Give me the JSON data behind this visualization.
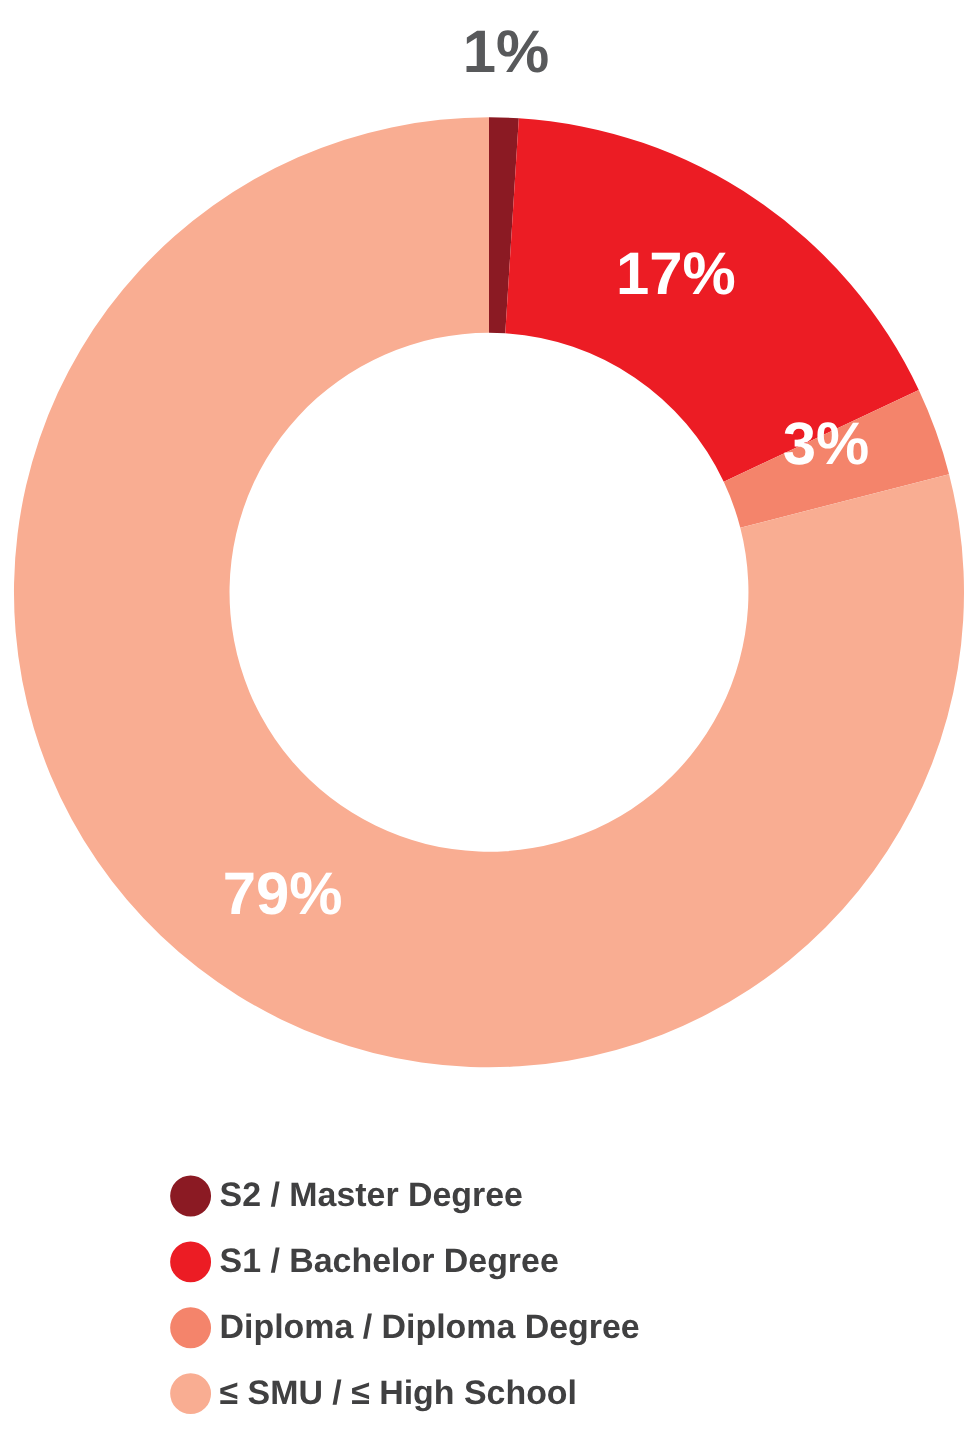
{
  "chart_data": {
    "type": "donut",
    "categories": [
      "S2 / Master Degree",
      "S1 / Bachelor Degree",
      "Diploma / Diploma Degree",
      "≤ SMU / ≤ High School"
    ],
    "values": [
      1,
      17,
      3,
      79
    ],
    "colors": [
      "#8b1a23",
      "#ec1c24",
      "#f4846b",
      "#f9ad92"
    ],
    "value_labels": [
      "1%",
      "17%",
      "3%",
      "79%"
    ],
    "legend": "bottom"
  }
}
